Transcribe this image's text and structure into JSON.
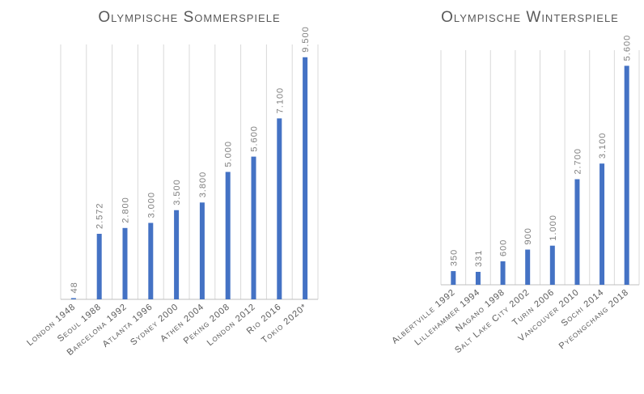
{
  "chart_data": [
    {
      "type": "bar",
      "title": "Olympische Sommerspiele",
      "categories": [
        "London 1948",
        "Seoul 1988",
        "Barcelona 1992",
        "Atlanta 1996",
        "Sydney 2000",
        "Athen 2004",
        "Peking 2008",
        "London 2012",
        "Rio 2016",
        "Tokio 2020*"
      ],
      "values": [
        48,
        2572,
        2800,
        3000,
        3500,
        3800,
        5000,
        5600,
        7100,
        9500
      ],
      "value_labels": [
        "48",
        "2.572",
        "2.800",
        "3.000",
        "3.500",
        "3.800",
        "5.000",
        "5.600",
        "7.100",
        "9.500"
      ],
      "color": "#4472c4",
      "ylim": [
        0,
        10000
      ],
      "grid": true
    },
    {
      "type": "bar",
      "title": "Olympische Winterspiele",
      "categories": [
        "Albertville 1992",
        "Lillehammer 1994",
        "Nagano 1998",
        "Salt Lake City 2002",
        "Turin 2006",
        "Vancouver 2010",
        "Sochi 2014",
        "Pyeongchang 2018"
      ],
      "values": [
        350,
        331,
        600,
        900,
        1000,
        2700,
        3100,
        5600
      ],
      "value_labels": [
        "350",
        "331",
        "600",
        "900",
        "1.000",
        "2.700",
        "3.100",
        "5.600"
      ],
      "color": "#4472c4",
      "ylim": [
        0,
        6000
      ],
      "grid": true
    }
  ]
}
